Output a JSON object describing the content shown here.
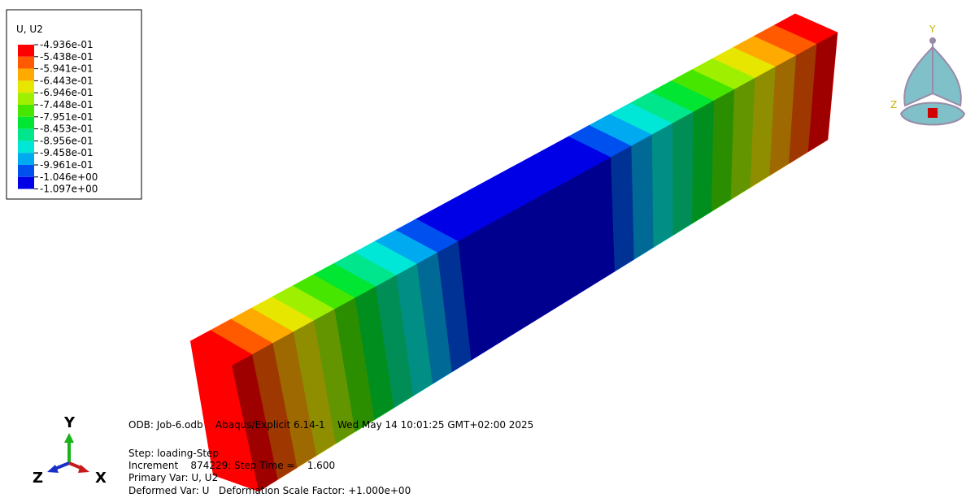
{
  "legend": {
    "title": "U, U2",
    "labels": [
      "-4.936e-01",
      "-5.438e-01",
      "-5.941e-01",
      "-6.443e-01",
      "-6.946e-01",
      "-7.448e-01",
      "-7.951e-01",
      "-8.453e-01",
      "-8.956e-01",
      "-9.458e-01",
      "-9.961e-01",
      "-1.046e+00",
      "-1.097e+00"
    ],
    "colors": [
      "#ff0000",
      "#ff5a00",
      "#ffaa00",
      "#e6e600",
      "#9ef000",
      "#46e600",
      "#00e632",
      "#00e68c",
      "#00e6d7",
      "#00aaf0",
      "#0050f0",
      "#0000e6"
    ]
  },
  "info": {
    "lines": [
      "ODB: Job-6.odb    Abaqus/Explicit 6.14-1    Wed May 14 10:01:25 GMT+02:00 2025",
      "Step: loading-Step",
      "Increment    874229: Step Time =    1.600",
      "Primary Var: U, U2",
      "Deformed Var: U   Deformation Scale Factor: +1.000e+00"
    ]
  },
  "triad": {
    "y": "Y",
    "z": "Z",
    "x": "X"
  },
  "view_cube": {
    "y": "Y",
    "z": "Z"
  }
}
